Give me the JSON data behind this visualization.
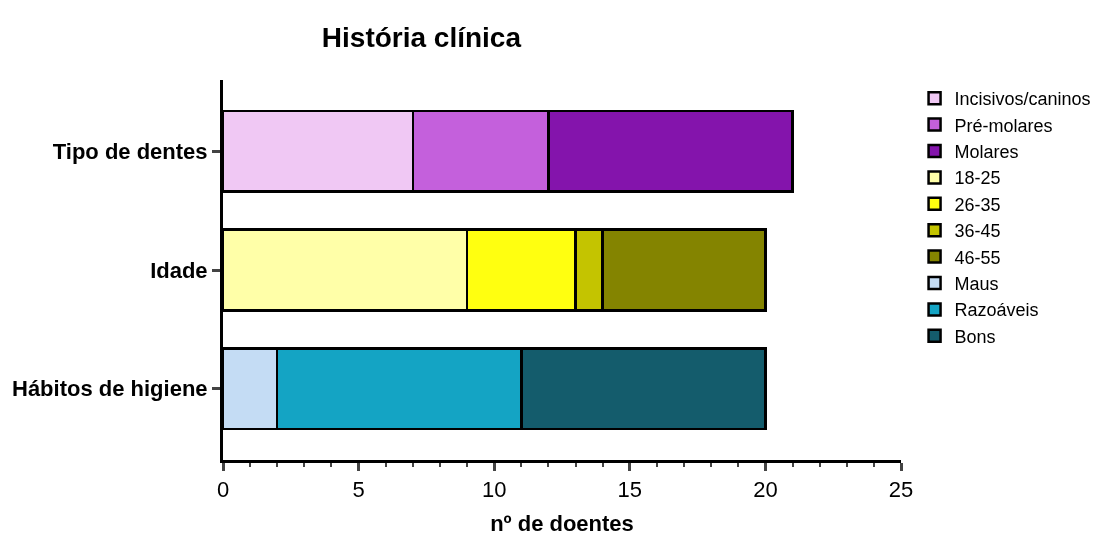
{
  "chart_data": {
    "type": "bar",
    "orientation": "horizontal",
    "stacked": true,
    "title": "História clínica",
    "xlabel": "nº de doentes",
    "categories": [
      "Tipo de dentes",
      "Idade",
      "Hábitos de higiene"
    ],
    "series": [
      {
        "name": "Incisivos/caninos",
        "color": "#f0c8f4",
        "values": [
          7,
          null,
          null
        ]
      },
      {
        "name": "Pré-molares",
        "color": "#c460dc",
        "values": [
          5,
          null,
          null
        ]
      },
      {
        "name": "Molares",
        "color": "#8414ac",
        "values": [
          9,
          null,
          null
        ]
      },
      {
        "name": "18-25",
        "color": "#ffffa8",
        "values": [
          null,
          9,
          null
        ]
      },
      {
        "name": "26-35",
        "color": "#ffff10",
        "values": [
          null,
          4,
          null
        ]
      },
      {
        "name": "36-45",
        "color": "#c4c400",
        "values": [
          null,
          1,
          null
        ]
      },
      {
        "name": "46-55",
        "color": "#848400",
        "values": [
          null,
          6,
          null
        ]
      },
      {
        "name": "Maus",
        "color": "#c4dcf4",
        "values": [
          null,
          null,
          2
        ]
      },
      {
        "name": "Razoáveis",
        "color": "#14a4c4",
        "values": [
          null,
          null,
          9
        ]
      },
      {
        "name": "Bons",
        "color": "#145c6c",
        "values": [
          null,
          null,
          9
        ]
      }
    ],
    "xlim": [
      0,
      25
    ],
    "xticks": [
      0,
      5,
      10,
      15,
      20,
      25
    ],
    "legend": "right"
  }
}
